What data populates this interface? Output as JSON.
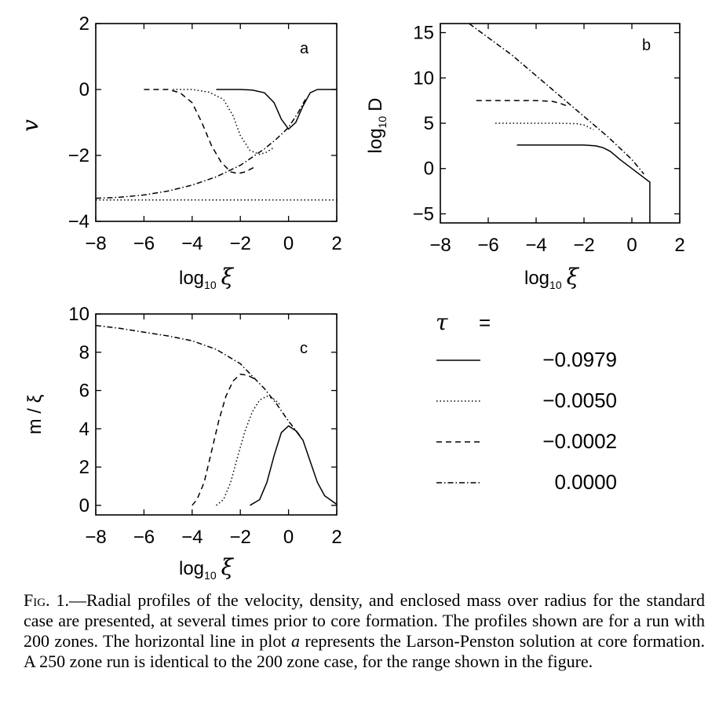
{
  "chart_data": [
    {
      "panel": "a",
      "type": "line",
      "xlabel_base": "log",
      "xlabel_sub": "10",
      "xlabel_var": "ξ",
      "ylabel": "v",
      "xlim": [
        -8,
        2
      ],
      "ylim": [
        -4,
        2
      ],
      "xticks": [
        "−8",
        "−6",
        "−4",
        "−2",
        "0",
        "2"
      ],
      "yticks": [
        "−4",
        "−2",
        "0",
        "2"
      ],
      "series": [
        {
          "tau": "−0.0979",
          "style": "solid",
          "x": [
            -3.0,
            -2.0,
            -1.5,
            -1.0,
            -0.6,
            -0.3,
            0.0,
            0.3,
            0.6,
            0.9,
            1.2,
            2.0
          ],
          "y": [
            0.0,
            0.0,
            -0.02,
            -0.1,
            -0.4,
            -0.9,
            -1.2,
            -1.0,
            -0.5,
            -0.1,
            0.0,
            0.0
          ]
        },
        {
          "tau": "−0.0050",
          "style": "dotted",
          "x": [
            -4.8,
            -4.0,
            -3.3,
            -2.7,
            -2.3,
            -2.0,
            -1.6,
            -1.2,
            -0.9,
            -0.6
          ],
          "y": [
            0.0,
            0.0,
            -0.08,
            -0.3,
            -0.8,
            -1.4,
            -1.85,
            -1.97,
            -1.9,
            -1.75
          ]
        },
        {
          "tau": "−0.0002",
          "style": "dashed",
          "x": [
            -6.0,
            -5.0,
            -4.5,
            -4.0,
            -3.6,
            -3.2,
            -2.8,
            -2.4,
            -2.1,
            -1.8,
            -1.4
          ],
          "y": [
            0.0,
            0.0,
            -0.1,
            -0.4,
            -1.0,
            -1.7,
            -2.2,
            -2.5,
            -2.55,
            -2.5,
            -2.35
          ]
        },
        {
          "tau": "0.0000",
          "style": "dashdot",
          "x": [
            -8.0,
            -7.0,
            -6.0,
            -5.0,
            -4.0,
            -3.0,
            -2.0,
            -1.5,
            -1.0,
            -0.5,
            0.0,
            0.4,
            0.7
          ],
          "y": [
            -3.3,
            -3.27,
            -3.2,
            -3.08,
            -2.9,
            -2.65,
            -2.3,
            -2.05,
            -1.8,
            -1.5,
            -1.15,
            -0.7,
            -0.3
          ]
        },
        {
          "name": "Larson-Penston",
          "style": "dotted-flat",
          "x": [
            -8.0,
            2.0
          ],
          "y": [
            -3.35,
            -3.35
          ]
        }
      ]
    },
    {
      "panel": "b",
      "type": "line",
      "xlabel_base": "log",
      "xlabel_sub": "10",
      "xlabel_var": "ξ",
      "ylabel_base": "log",
      "ylabel_sub": "10",
      "ylabel_var": "D",
      "xlim": [
        -8,
        2
      ],
      "ylim": [
        -6,
        16
      ],
      "xticks": [
        "−8",
        "−6",
        "−4",
        "−2",
        "0",
        "2"
      ],
      "yticks": [
        "−5",
        "0",
        "5",
        "10",
        "15"
      ],
      "series": [
        {
          "tau": "−0.0979",
          "style": "solid",
          "x": [
            -4.8,
            -2.0,
            -1.5,
            -1.2,
            -0.9,
            -0.5,
            0.0,
            0.5,
            0.7,
            0.75,
            0.75
          ],
          "y": [
            2.6,
            2.6,
            2.5,
            2.3,
            1.9,
            1.0,
            0.0,
            -1.0,
            -1.4,
            -1.5,
            -6.0
          ]
        },
        {
          "tau": "−0.0050",
          "style": "dotted",
          "x": [
            -5.7,
            -3.0,
            -2.3,
            -2.0,
            -1.6
          ],
          "y": [
            5.0,
            5.0,
            4.95,
            4.8,
            4.3
          ]
        },
        {
          "tau": "−0.0002",
          "style": "dashed",
          "x": [
            -6.5,
            -4.0,
            -3.3,
            -3.0,
            -2.7
          ],
          "y": [
            7.5,
            7.5,
            7.4,
            7.2,
            6.9
          ]
        },
        {
          "tau": "0.0000",
          "style": "dashdot",
          "x": [
            -6.8,
            -5.0,
            -3.0,
            -1.0,
            0.0,
            0.5
          ],
          "y": [
            16.0,
            12.5,
            8.0,
            3.5,
            1.0,
            -0.6
          ]
        }
      ]
    },
    {
      "panel": "c",
      "type": "line",
      "xlabel_base": "log",
      "xlabel_sub": "10",
      "xlabel_var": "ξ",
      "ylabel": "m / ξ",
      "xlim": [
        -8,
        2
      ],
      "ylim": [
        -0.5,
        10
      ],
      "xticks": [
        "−8",
        "−6",
        "−4",
        "−2",
        "0",
        "2"
      ],
      "yticks": [
        "0",
        "2",
        "4",
        "6",
        "8",
        "10"
      ],
      "series": [
        {
          "tau": "−0.0979",
          "style": "solid",
          "x": [
            -1.6,
            -1.2,
            -0.9,
            -0.6,
            -0.3,
            0.0,
            0.3,
            0.6,
            0.9,
            1.2,
            1.5,
            2.0
          ],
          "y": [
            0.0,
            0.3,
            1.2,
            2.6,
            3.8,
            4.15,
            3.9,
            3.4,
            2.3,
            1.2,
            0.5,
            0.05
          ]
        },
        {
          "tau": "−0.0050",
          "style": "dotted",
          "x": [
            -3.0,
            -2.7,
            -2.4,
            -2.1,
            -1.8,
            -1.5,
            -1.2,
            -0.9,
            -0.6,
            -0.3
          ],
          "y": [
            0.0,
            0.3,
            1.2,
            2.6,
            3.9,
            4.9,
            5.5,
            5.7,
            5.55,
            5.2
          ]
        },
        {
          "tau": "−0.0002",
          "style": "dashed",
          "x": [
            -4.0,
            -3.8,
            -3.5,
            -3.2,
            -2.9,
            -2.6,
            -2.3,
            -2.0,
            -1.7,
            -1.4
          ],
          "y": [
            0.0,
            0.3,
            1.2,
            2.8,
            4.4,
            5.7,
            6.5,
            6.85,
            6.8,
            6.6
          ]
        },
        {
          "tau": "0.0000",
          "style": "dashdot",
          "x": [
            -8.0,
            -7.0,
            -6.0,
            -5.0,
            -4.0,
            -3.0,
            -2.0,
            -1.0,
            -0.5,
            0.0,
            0.5
          ],
          "y": [
            9.4,
            9.25,
            9.05,
            8.85,
            8.6,
            8.15,
            7.4,
            6.1,
            5.3,
            4.4,
            3.6
          ]
        }
      ]
    }
  ],
  "panel_letters": {
    "a": "a",
    "b": "b",
    "c": "c"
  },
  "legend": {
    "tau_symbol": "τ",
    "equals": "=",
    "entries": [
      {
        "style": "solid",
        "label": "−0.0979"
      },
      {
        "style": "dotted",
        "label": "−0.0050"
      },
      {
        "style": "dashed",
        "label": "−0.0002"
      },
      {
        "style": "dashdot",
        "label": "0.0000"
      }
    ]
  },
  "caption": {
    "prefix": "Fig. 1.",
    "text_1": "—Radial profiles of the velocity, density, and enclosed mass over radius for the standard case are presented, at several times prior to core formation. The profiles shown are for a run with 200 zones. The horizontal line in plot ",
    "italic_a": "a",
    "text_2": " represents the Larson-Penston solution at core formation. A 250 zone run is identical to the 200 zone case, for the range shown in the figure."
  }
}
